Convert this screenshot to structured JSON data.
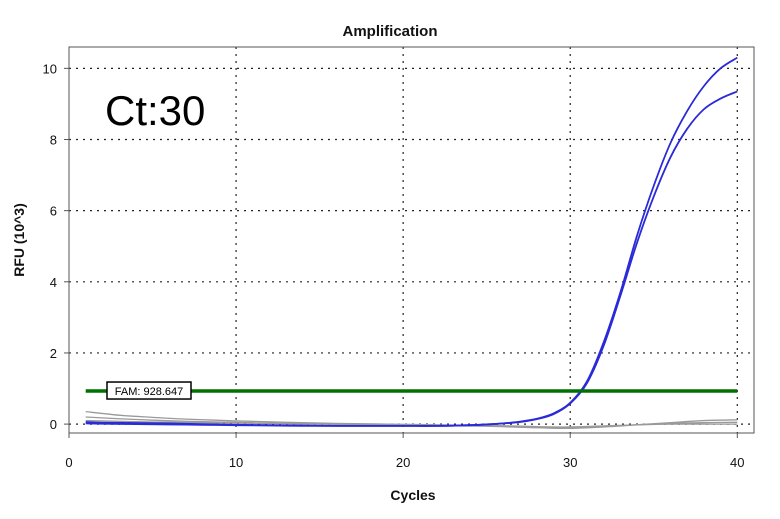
{
  "chart_data": {
    "type": "line",
    "title": "Amplification",
    "xlabel": "Cycles",
    "ylabel": "RFU (10^3)",
    "xlim": [
      0,
      41
    ],
    "ylim": [
      -0.25,
      10.6
    ],
    "xticks": [
      "0",
      "10",
      "20",
      "30",
      "40"
    ],
    "yticks": [
      "0",
      "2",
      "4",
      "6",
      "8",
      "10"
    ],
    "grid": true,
    "annotation": "Ct:30",
    "threshold": {
      "label": "FAM: 928.647",
      "value": 0.93,
      "color": "#007000"
    },
    "series": [
      {
        "color": "#2a2ad8",
        "x": [
          1,
          2,
          4,
          6,
          8,
          10,
          12,
          14,
          16,
          18,
          20,
          22,
          24,
          25,
          26,
          27,
          28,
          29,
          30,
          31,
          32,
          33,
          34,
          35,
          36,
          37,
          38,
          39,
          40
        ],
        "y": [
          0.06,
          0.04,
          0.03,
          0.02,
          0.0,
          -0.02,
          -0.03,
          -0.04,
          -0.05,
          -0.05,
          -0.05,
          -0.05,
          -0.03,
          -0.01,
          0.02,
          0.07,
          0.15,
          0.3,
          0.6,
          1.2,
          2.3,
          3.7,
          5.3,
          6.7,
          7.9,
          8.8,
          9.5,
          10.0,
          10.3
        ]
      },
      {
        "color": "#2a2ad8",
        "x": [
          1,
          2,
          4,
          6,
          8,
          10,
          12,
          14,
          16,
          18,
          20,
          22,
          24,
          25,
          26,
          27,
          28,
          29,
          30,
          31,
          32,
          33,
          34,
          35,
          36,
          37,
          38,
          39,
          40
        ],
        "y": [
          0.02,
          0.01,
          0.0,
          -0.01,
          -0.02,
          -0.03,
          -0.04,
          -0.05,
          -0.05,
          -0.05,
          -0.05,
          -0.05,
          -0.03,
          -0.01,
          0.02,
          0.06,
          0.14,
          0.28,
          0.58,
          1.15,
          2.2,
          3.6,
          5.1,
          6.4,
          7.5,
          8.3,
          8.85,
          9.15,
          9.35
        ]
      },
      {
        "color": "#9a9a9a",
        "x": [
          1,
          3,
          5,
          7,
          10,
          13,
          16,
          19,
          22,
          25,
          28,
          30,
          32,
          34,
          36,
          38,
          40
        ],
        "y": [
          0.35,
          0.25,
          0.19,
          0.14,
          0.09,
          0.05,
          0.02,
          0.0,
          -0.02,
          -0.05,
          -0.1,
          -0.12,
          -0.08,
          -0.02,
          0.04,
          0.1,
          0.12
        ]
      },
      {
        "color": "#9a9a9a",
        "x": [
          1,
          3,
          5,
          7,
          10,
          13,
          16,
          19,
          22,
          25,
          28,
          30,
          32,
          34,
          36,
          38,
          40
        ],
        "y": [
          0.2,
          0.15,
          0.11,
          0.08,
          0.05,
          0.02,
          0.0,
          -0.02,
          -0.04,
          -0.06,
          -0.1,
          -0.1,
          -0.07,
          -0.02,
          0.02,
          0.04,
          0.05
        ]
      },
      {
        "color": "#9a9a9a",
        "x": [
          1,
          5,
          10,
          15,
          20,
          25,
          28,
          30,
          32,
          34,
          36,
          38,
          40
        ],
        "y": [
          0.1,
          0.06,
          0.03,
          0.0,
          -0.02,
          -0.04,
          -0.07,
          -0.08,
          -0.05,
          -0.02,
          0.0,
          0.0,
          0.0
        ]
      }
    ]
  }
}
